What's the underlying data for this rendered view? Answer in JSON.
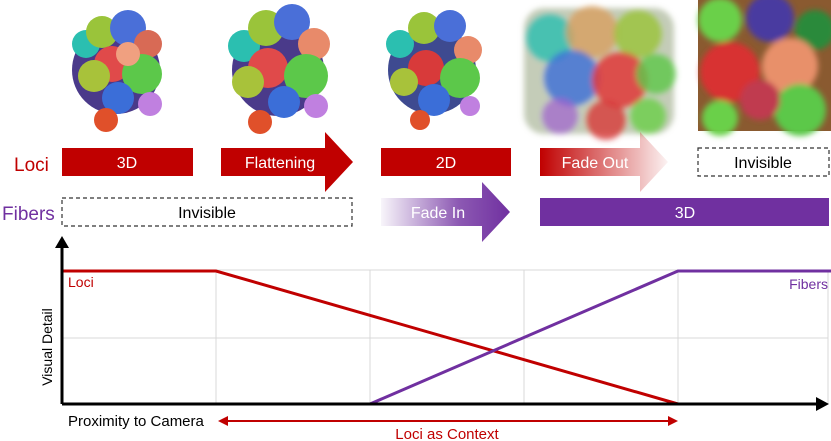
{
  "row_labels": {
    "loci": "Loci",
    "fibers": "Fibers"
  },
  "loci_stages": [
    "3D",
    "Flattening",
    "2D",
    "Fade Out",
    "Invisible"
  ],
  "fiber_stages": [
    "Invisible",
    "Fade In",
    "3D"
  ],
  "axes": {
    "ylabel": "Visual Detail",
    "xlabel": "Proximity to Camera"
  },
  "annotation": "Loci as Context",
  "curves": {
    "loci": "Loci",
    "fibers": "Fibers"
  },
  "colors": {
    "loci": "#c00000",
    "fibers": "#7030a0",
    "fade_in": "#7030a0"
  },
  "thumbnails": [
    "render-3d-icon",
    "render-flattening-icon",
    "render-2d-icon",
    "render-fade-out-icon",
    "render-invisible-icon"
  ]
}
